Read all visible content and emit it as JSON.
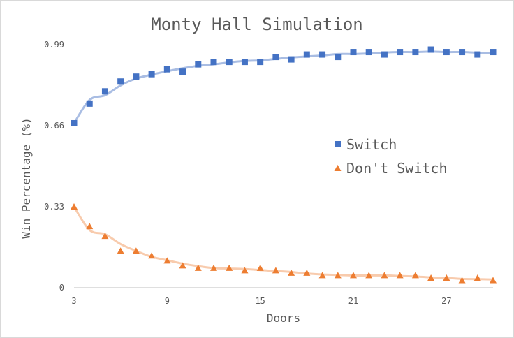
{
  "chart_data": {
    "type": "scatter",
    "title": "Monty Hall Simulation",
    "xlabel": "Doors",
    "ylabel": "Win Percentage (%)",
    "xlim": [
      3,
      30
    ],
    "ylim": [
      0,
      0.99
    ],
    "x_ticks": [
      3,
      9,
      15,
      21,
      27
    ],
    "y_ticks": [
      0,
      0.33,
      0.66,
      0.99
    ],
    "y_tick_labels": [
      "0",
      "0.33",
      "0.66",
      "0.99"
    ],
    "grid": false,
    "legend_position": "right",
    "trendline": "smoothed curve per series",
    "x": [
      3,
      4,
      5,
      6,
      7,
      8,
      9,
      10,
      11,
      12,
      13,
      14,
      15,
      16,
      17,
      18,
      19,
      20,
      21,
      22,
      23,
      24,
      25,
      26,
      27,
      28,
      29,
      30
    ],
    "series": [
      {
        "name": "Switch",
        "marker": "square",
        "marker_color": "#4472c4",
        "line_color": "#a9bde3",
        "values": [
          0.67,
          0.75,
          0.8,
          0.84,
          0.86,
          0.87,
          0.89,
          0.88,
          0.91,
          0.92,
          0.92,
          0.92,
          0.92,
          0.94,
          0.93,
          0.95,
          0.95,
          0.94,
          0.96,
          0.96,
          0.95,
          0.96,
          0.96,
          0.97,
          0.96,
          0.96,
          0.95,
          0.96
        ]
      },
      {
        "name": "Don't Switch",
        "marker": "triangle",
        "marker_color": "#ed7d31",
        "line_color": "#f8cbad",
        "values": [
          0.33,
          0.25,
          0.21,
          0.15,
          0.15,
          0.13,
          0.11,
          0.09,
          0.08,
          0.08,
          0.08,
          0.07,
          0.08,
          0.07,
          0.06,
          0.06,
          0.05,
          0.05,
          0.05,
          0.05,
          0.05,
          0.05,
          0.05,
          0.04,
          0.04,
          0.03,
          0.04,
          0.03
        ]
      }
    ]
  }
}
